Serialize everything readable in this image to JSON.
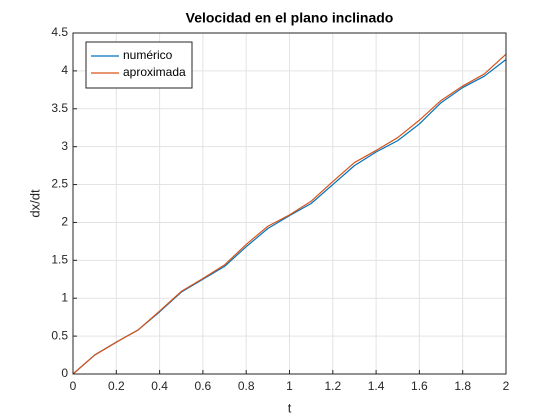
{
  "chart_data": {
    "type": "line",
    "title": "Velocidad en el plano inclinado",
    "x_label": "t",
    "y_label": "dx/dt",
    "x": [
      0,
      0.1,
      0.2,
      0.3,
      0.4,
      0.5,
      0.6,
      0.7,
      0.8,
      0.9,
      1.0,
      1.1,
      1.2,
      1.3,
      1.4,
      1.5,
      1.6,
      1.7,
      1.8,
      1.9,
      2.0
    ],
    "series": [
      {
        "name": "numérico",
        "color": "#0072bd",
        "values": [
          0,
          0.25,
          0.42,
          0.58,
          0.82,
          1.08,
          1.25,
          1.42,
          1.68,
          1.92,
          2.09,
          2.25,
          2.5,
          2.75,
          2.93,
          3.08,
          3.3,
          3.58,
          3.78,
          3.93,
          4.15
        ]
      },
      {
        "name": "aproximada",
        "color": "#d95319",
        "values": [
          0,
          0.25,
          0.42,
          0.58,
          0.83,
          1.09,
          1.26,
          1.44,
          1.71,
          1.95,
          2.1,
          2.28,
          2.54,
          2.79,
          2.95,
          3.12,
          3.35,
          3.61,
          3.8,
          3.96,
          4.22
        ]
      }
    ],
    "xlim": [
      0,
      2
    ],
    "xticks": [
      0,
      0.2,
      0.4,
      0.6,
      0.8,
      1,
      1.2,
      1.4,
      1.6,
      1.8,
      2
    ],
    "ylim": [
      0,
      4.5
    ],
    "yticks": [
      0,
      0.5,
      1,
      1.5,
      2,
      2.5,
      3,
      3.5,
      4,
      4.5
    ],
    "grid": true,
    "legend": "northwest"
  }
}
